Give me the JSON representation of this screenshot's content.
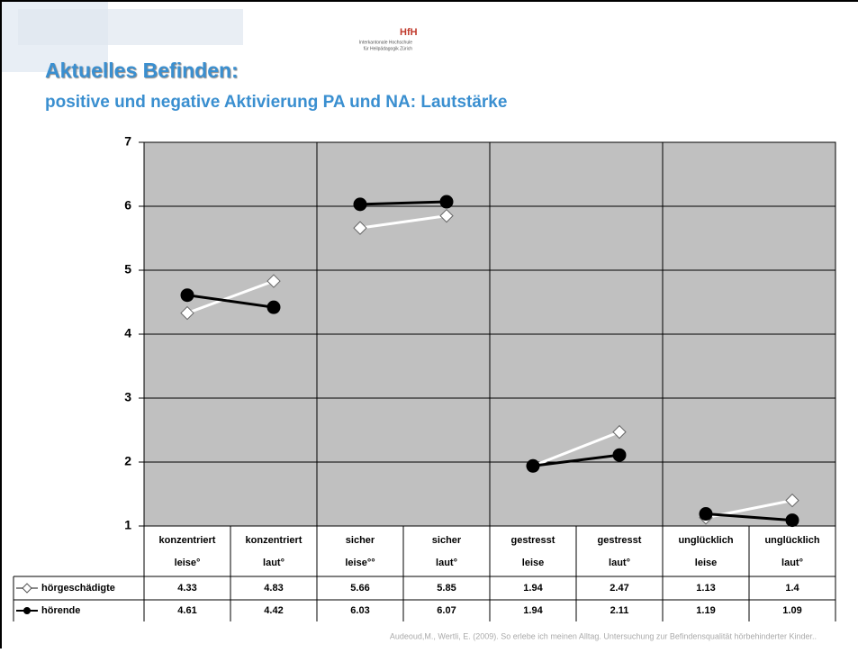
{
  "header": {
    "logo": "HfH",
    "institution": [
      "Interkantonale Hochschule",
      "für Heilpädagogik Zürich"
    ],
    "title": "Aktuelles Befinden:",
    "subtitle": "positive und negative Aktivierung PA und NA: Lautstärke"
  },
  "footer": "Audeoud,M., Wertli, E. (2009). So erlebe ich meinen Alltag. Untersuchung zur Befindensqualität hörbehinderter Kinder..",
  "chart_data": {
    "type": "line",
    "categories": [
      [
        "konzentriert",
        "leise°"
      ],
      [
        "konzentriert",
        "laut°"
      ],
      [
        "sicher",
        "leise°°"
      ],
      [
        "sicher",
        "laut°"
      ],
      [
        "gestresst",
        "leise"
      ],
      [
        "gestresst",
        "laut°"
      ],
      [
        "unglücklich",
        "leise"
      ],
      [
        "unglücklich",
        "laut°"
      ]
    ],
    "series": [
      {
        "name": "hörgeschädigte",
        "color": "#ffffff",
        "values": [
          4.33,
          4.83,
          5.66,
          5.85,
          1.94,
          2.47,
          1.13,
          1.4
        ]
      },
      {
        "name": "hörende",
        "color": "#000000",
        "values": [
          4.61,
          4.42,
          6.03,
          6.07,
          1.94,
          2.11,
          1.19,
          1.09
        ]
      }
    ],
    "ylim": [
      1,
      7
    ],
    "yticks": [
      1,
      2,
      3,
      4,
      5,
      6,
      7
    ],
    "grid": true,
    "plot_background": "#c0c0c0"
  }
}
